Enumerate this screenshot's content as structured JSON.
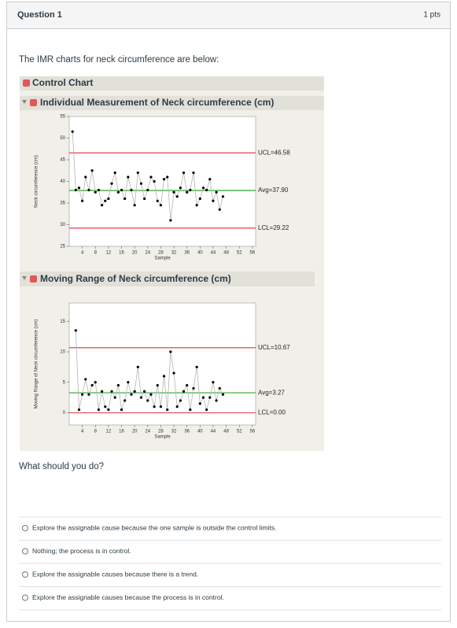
{
  "header": {
    "title": "Question 1",
    "points": "1 pts"
  },
  "prompt": "The IMR charts for neck circumference are below:",
  "report_title": "Control Chart",
  "chart_data": [
    {
      "type": "line",
      "title": "Individual Measurement of Neck circumference (cm)",
      "x_label": "Sample",
      "y_label": "Neck circumference (cm)",
      "x": [
        1,
        2,
        3,
        4,
        5,
        6,
        7,
        8,
        9,
        10,
        11,
        12,
        13,
        14,
        15,
        16,
        17,
        18,
        19,
        20,
        21,
        22,
        23,
        24,
        25,
        26,
        27,
        28,
        29,
        30,
        31,
        32,
        33,
        34,
        35,
        36,
        37,
        38,
        39,
        40,
        41,
        42,
        43,
        44,
        45,
        46,
        47
      ],
      "values": [
        51.5,
        38,
        38.5,
        35.5,
        41,
        38,
        42.5,
        37.5,
        38,
        34.5,
        35.5,
        36,
        39.5,
        42,
        37.5,
        38,
        36,
        41,
        38,
        34.5,
        42,
        39.5,
        36,
        38,
        41,
        40,
        35.5,
        34.5,
        40.5,
        41,
        31,
        37.5,
        36.5,
        38.5,
        42,
        37.5,
        38,
        42,
        34.5,
        36,
        38.5,
        38,
        40.5,
        35.5,
        37.5,
        33.5,
        36.5
      ],
      "line_color": "#b4b4b4",
      "marker_color": "#000000",
      "xlim": [
        0,
        57
      ],
      "xticks": [
        4,
        8,
        12,
        16,
        20,
        24,
        28,
        32,
        36,
        40,
        44,
        48,
        52,
        56
      ],
      "ylim": [
        25,
        55
      ],
      "yticks": [
        25,
        30,
        35,
        40,
        45,
        50,
        55
      ],
      "limits": [
        {
          "label": "UCL=46.58",
          "value": 46.58,
          "color": "#e8525c"
        },
        {
          "label": "Avg=37.90",
          "value": 37.9,
          "color": "#3fae3f"
        },
        {
          "label": "LCL=29.22",
          "value": 29.22,
          "color": "#e8525c"
        }
      ]
    },
    {
      "type": "line",
      "title": "Moving Range of Neck circumference (cm)",
      "x_label": "Sample",
      "y_label": "Moving Range of Neck circumference (cm)",
      "x": [
        2,
        3,
        4,
        5,
        6,
        7,
        8,
        9,
        10,
        11,
        12,
        13,
        14,
        15,
        16,
        17,
        18,
        19,
        20,
        21,
        22,
        23,
        24,
        25,
        26,
        27,
        28,
        29,
        30,
        31,
        32,
        33,
        34,
        35,
        36,
        37,
        38,
        39,
        40,
        41,
        42,
        43,
        44,
        45,
        46,
        47
      ],
      "values": [
        13.5,
        0.5,
        3,
        5.5,
        3,
        4.5,
        5,
        0.5,
        3.5,
        1,
        0.5,
        3.5,
        2.5,
        4.5,
        0.5,
        2,
        5,
        3,
        3.5,
        7.5,
        2.5,
        3.5,
        2,
        3,
        1,
        4.5,
        1,
        6,
        0.5,
        10,
        6.5,
        1,
        2,
        3.5,
        4.5,
        0.5,
        4,
        7.5,
        1.5,
        2.5,
        0.5,
        2.5,
        5,
        2,
        4,
        3
      ],
      "line_color": "#b4b4b4",
      "marker_color": "#000000",
      "xlim": [
        0,
        57
      ],
      "xticks": [
        4,
        8,
        12,
        16,
        20,
        24,
        28,
        32,
        36,
        40,
        44,
        48,
        52,
        56
      ],
      "ylim": [
        -2,
        18
      ],
      "yticks": [
        0,
        5,
        10,
        15
      ],
      "limits": [
        {
          "label": "UCL=10.67",
          "value": 10.67,
          "color": "#e8525c"
        },
        {
          "label": "Avg=3.27",
          "value": 3.27,
          "color": "#3fae3f"
        },
        {
          "label": "LCL=0.00",
          "value": 0,
          "color": "#e8525c"
        }
      ]
    }
  ],
  "question": "What should you do?",
  "options": [
    "Explore the assignable cause because the one sample is outside the control limits.",
    "Nothing; the process is in control.",
    "Explore the assignable causes because there is a trend.",
    "Explore the assignable causes because the process is in control."
  ]
}
